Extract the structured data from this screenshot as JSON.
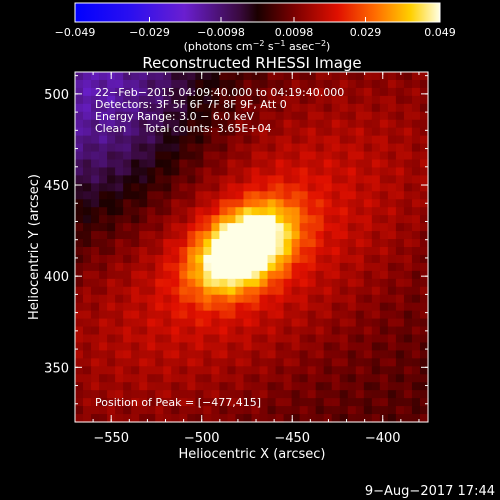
{
  "chart_data": {
    "type": "heatmap",
    "title": "Reconstructed RHESSI Image",
    "xlabel": "Heliocentric X (arcsec)",
    "ylabel": "Heliocentric Y (arcsec)",
    "xlim": [
      -570,
      -375
    ],
    "ylim": [
      320,
      512
    ],
    "x_ticks": [
      -550,
      -500,
      -450,
      -400
    ],
    "y_ticks": [
      350,
      400,
      450,
      500
    ],
    "x_tick_labels": [
      "−550",
      "−500",
      "−450",
      "−400"
    ],
    "y_tick_labels": [
      "350",
      "400",
      "450",
      "500"
    ],
    "colorbar": {
      "range": [
        -0.049,
        0.049
      ],
      "ticks": [
        -0.049,
        -0.029,
        -0.0098,
        0.0098,
        0.029,
        0.049
      ],
      "tick_labels": [
        "−0.049",
        "−0.029",
        "−0.0098",
        "0.0098",
        "0.029",
        "0.049"
      ],
      "unit_base": "(photons cm",
      "unit_exp1": "−2",
      "unit_mid": " s",
      "unit_exp2": "−1",
      "unit_mid2": " asec",
      "unit_exp3": "−2",
      "unit_end": ")"
    },
    "info_lines": [
      "22−Feb−2015 04:09:40.000 to 04:19:40.000",
      "Detectors: 3F 5F 6F 7F 8F 9F, Att 0",
      "Energy Range: 3.0 − 6.0 keV",
      "Clean     Total counts: 3.65E+04"
    ],
    "peak_label": "Position of Peak = [−477,415]",
    "peak": {
      "x": -477,
      "y": 415,
      "value": 0.049
    },
    "source": {
      "x": -477,
      "y": 415,
      "sigma_major": 20,
      "sigma_minor": 13,
      "angle_deg": 35
    },
    "negative_region": "upper-left",
    "timestamp": "9−Aug−2017 17:44"
  }
}
